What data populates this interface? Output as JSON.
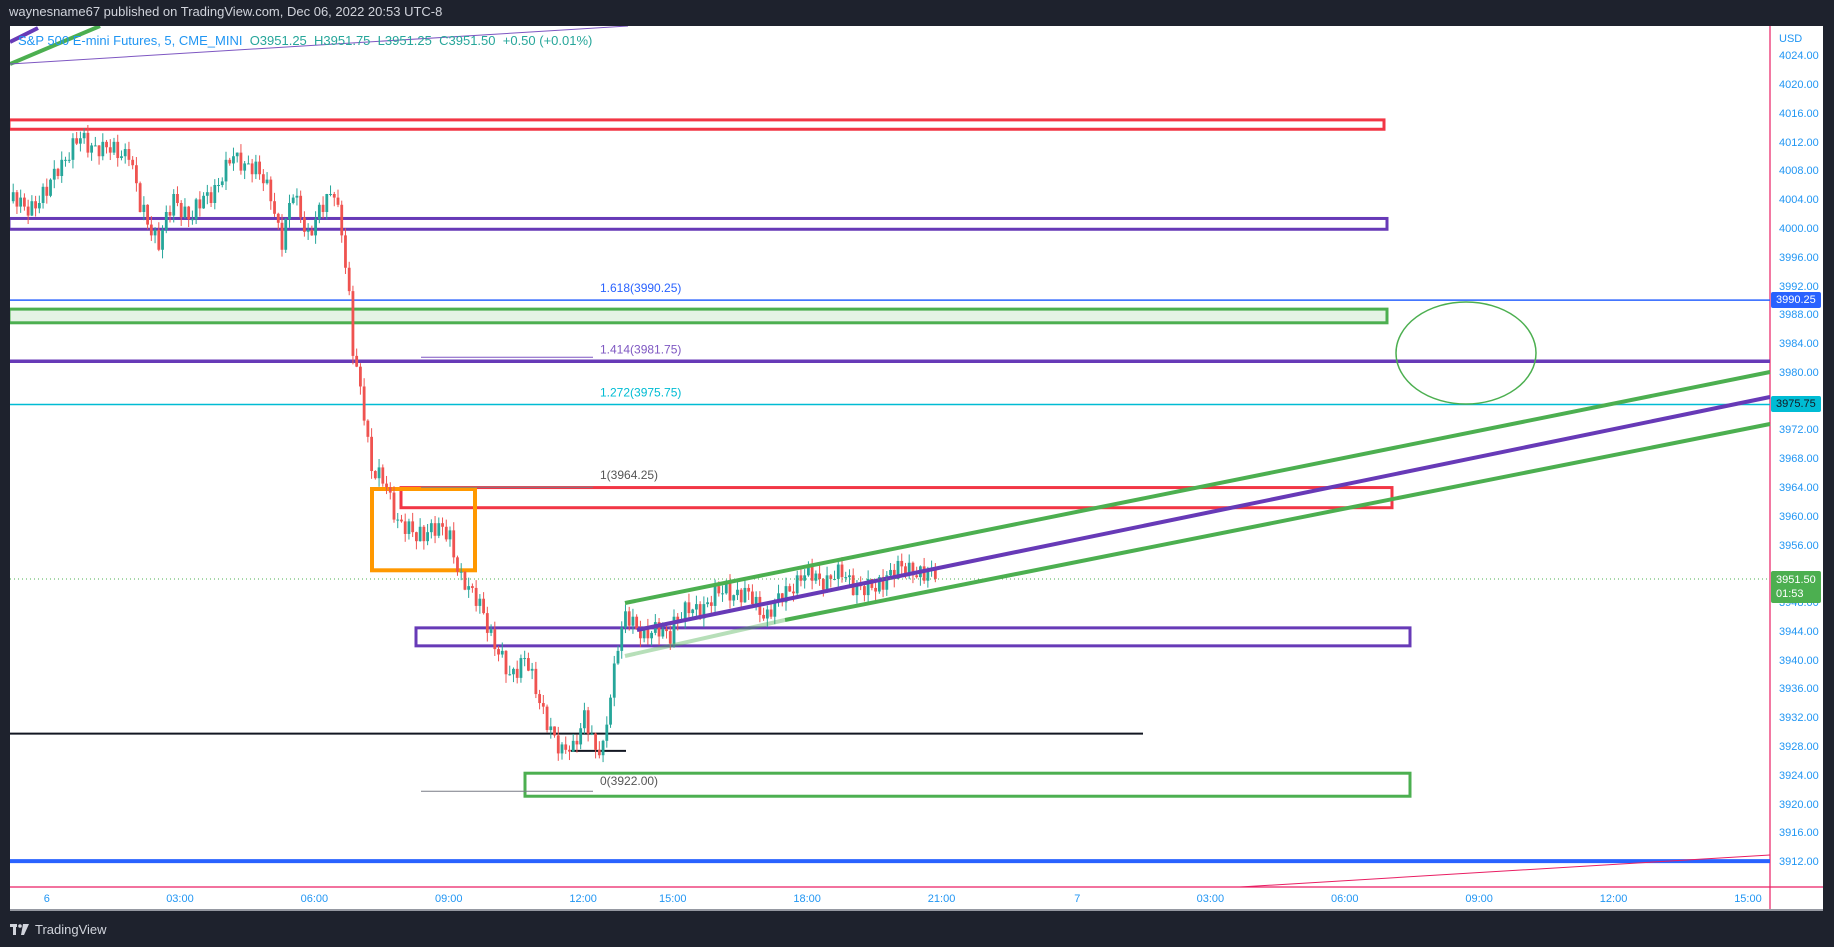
{
  "header": {
    "publish_text": "waynesname67 published on TradingView.com, Dec 06, 2022 20:53 UTC-8"
  },
  "legend": {
    "symbol": "S&P 500 E-mini Futures, 5, CME_MINI",
    "open": "O3951.25",
    "high": "H3951.75",
    "low": "L3951.25",
    "close": "C3951.50",
    "change": "+0.50 (+0.01%)"
  },
  "price_axis": {
    "currency": "USD",
    "ticks": [
      "4024.00",
      "4020.00",
      "4016.00",
      "4012.00",
      "4008.00",
      "4004.00",
      "4000.00",
      "3996.00",
      "3992.00",
      "3988.00",
      "3984.00",
      "3980.00",
      "3976.00",
      "3972.00",
      "3968.00",
      "3964.00",
      "3960.00",
      "3956.00",
      "3952.00",
      "3948.00",
      "3944.00",
      "3940.00",
      "3936.00",
      "3932.00",
      "3928.00",
      "3924.00",
      "3920.00",
      "3916.00",
      "3912.00"
    ],
    "hidden_ticks": [
      "3976.00",
      "3952.00"
    ],
    "tag_blue": "3990.25",
    "tag_cyan": "3975.75",
    "tag_last_price": "3951.50",
    "tag_countdown": "01:53"
  },
  "time_axis": {
    "ticks": [
      "6",
      "03:00",
      "06:00",
      "09:00",
      "12:00",
      "15:00",
      "18:00",
      "21:00",
      "7",
      "03:00",
      "06:00",
      "09:00",
      "12:00",
      "15:00"
    ]
  },
  "fib_labels": {
    "l1618": "1.618(3990.25)",
    "l1414": "1.414(3981.75)",
    "l1272": "1.272(3975.75)",
    "l1": "1(3964.25)",
    "l0": "0(3922.00)"
  },
  "footer": {
    "brand": "TradingView"
  },
  "colors": {
    "up": "#26a69a",
    "down": "#ef5350",
    "red_zone": "#f23645",
    "purple": "#673ab7",
    "green": "#4caf50",
    "blue": "#2962ff",
    "cyan": "#00bcd4",
    "orange": "#ff9800",
    "axis_text": "#2196f3"
  },
  "chart_data": {
    "type": "candlestick",
    "symbol": "S&P 500 E-mini Futures",
    "interval": "5",
    "ylim": [
      3910,
      4026
    ],
    "session_break": [
      "14:00",
      "15:00"
    ],
    "close_path": [
      [
        "12-05 23:15",
        4004
      ],
      [
        "12-05 23:30",
        4003
      ],
      [
        "12-06 00:00",
        4005
      ],
      [
        "12-06 00:15",
        4009
      ],
      [
        "12-06 00:45",
        4012.5
      ],
      [
        "12-06 01:20",
        4011
      ],
      [
        "12-06 01:50",
        4011
      ],
      [
        "12-06 02:05",
        4003
      ],
      [
        "12-06 02:30",
        3998.5
      ],
      [
        "12-06 02:50",
        4004
      ],
      [
        "12-06 03:15",
        4002
      ],
      [
        "12-06 03:45",
        4006
      ],
      [
        "12-06 04:10",
        4010
      ],
      [
        "12-06 04:35",
        4009
      ],
      [
        "12-06 05:00",
        4005
      ],
      [
        "12-06 05:15",
        3998.5
      ],
      [
        "12-06 05:30",
        4005
      ],
      [
        "12-06 05:50",
        3999.5
      ],
      [
        "12-06 06:10",
        4003
      ],
      [
        "12-06 06:25",
        4006
      ],
      [
        "12-06 06:35",
        4000
      ],
      [
        "12-06 06:45",
        3990
      ],
      [
        "12-06 06:50",
        3983
      ],
      [
        "12-06 07:05",
        3975
      ],
      [
        "12-06 07:15",
        3967
      ],
      [
        "12-06 07:35",
        3964
      ],
      [
        "12-06 07:50",
        3960
      ],
      [
        "12-06 08:15",
        3957
      ],
      [
        "12-06 08:35",
        3959
      ],
      [
        "12-06 09:00",
        3957
      ],
      [
        "12-06 09:15",
        3952
      ],
      [
        "12-06 09:30",
        3949
      ],
      [
        "12-06 09:45",
        3947
      ],
      [
        "12-06 10:05",
        3941
      ],
      [
        "12-06 10:20",
        3937.7
      ],
      [
        "12-06 10:40",
        3941
      ],
      [
        "12-06 11:00",
        3934
      ],
      [
        "12-06 11:15",
        3931
      ],
      [
        "12-06 11:30",
        3927
      ],
      [
        "12-06 11:45",
        3928
      ],
      [
        "12-06 12:00",
        3933
      ],
      [
        "12-06 12:15",
        3927
      ],
      [
        "12-06 12:25",
        3928
      ],
      [
        "12-06 12:35",
        3936
      ],
      [
        "12-06 12:45",
        3942.5
      ],
      [
        "12-06 12:55",
        3945.8
      ],
      [
        "12-06 13:25",
        3944
      ],
      [
        "12-06 13:55",
        3944
      ],
      [
        "12-06 15:05",
        3946
      ],
      [
        "12-06 15:40",
        3948
      ],
      [
        "12-06 16:10",
        3950
      ],
      [
        "12-06 16:40",
        3949
      ],
      [
        "12-06 17:05",
        3946.6
      ],
      [
        "12-06 17:25",
        3949
      ],
      [
        "12-06 17:50",
        3952
      ],
      [
        "12-06 18:15",
        3951.5
      ],
      [
        "12-06 18:45",
        3952
      ],
      [
        "12-06 19:15",
        3950
      ],
      [
        "12-06 19:30",
        3950
      ],
      [
        "12-06 19:45",
        3952.3
      ],
      [
        "12-06 20:20",
        3953
      ],
      [
        "12-06 20:50",
        3951.5
      ]
    ],
    "last": {
      "open": 3951.25,
      "high": 3951.75,
      "low": 3951.25,
      "close": 3951.5
    },
    "drawings": {
      "red_zone_top": [
        4015.3,
        4014.0
      ],
      "purple_zone_top": [
        4001.6,
        4000.1
      ],
      "green_zone_fill": [
        3989.0,
        3987.1
      ],
      "red_zone_mid": [
        3964.2,
        3961.4
      ],
      "orange_box": [
        3964.0,
        3952.7
      ],
      "purple_zone_low": [
        3944.7,
        3942.2
      ],
      "green_zone_low": [
        3924.5,
        3921.3
      ],
      "black_line": 3930.0,
      "black_short_line": 3927.6,
      "blue_line_bottom": 3912.0,
      "fib_levels": [
        3990.25,
        3981.75,
        3975.75,
        3964.25,
        3922.0
      ]
    }
  }
}
